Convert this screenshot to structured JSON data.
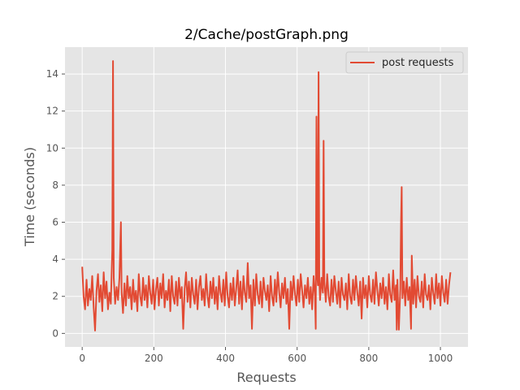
{
  "chart_data": {
    "type": "line",
    "title": "2/Cache/postGraph.png",
    "xlabel": "Requests",
    "ylabel": "Time (seconds)",
    "xlim": [
      -48,
      1077
    ],
    "ylim": [
      -0.73,
      15.45
    ],
    "xticks": [
      0,
      200,
      400,
      600,
      800,
      1000
    ],
    "yticks": [
      0,
      2,
      4,
      6,
      8,
      10,
      12,
      14
    ],
    "grid": true,
    "legend_position": "top-right",
    "series": [
      {
        "name": "post requests",
        "color": "#E24A33",
        "points": [
          [
            0,
            3.6
          ],
          [
            4,
            2.0
          ],
          [
            8,
            1.3
          ],
          [
            12,
            2.9
          ],
          [
            16,
            1.5
          ],
          [
            20,
            2.4
          ],
          [
            24,
            1.8
          ],
          [
            28,
            3.1
          ],
          [
            32,
            1.4
          ],
          [
            36,
            0.15
          ],
          [
            40,
            2.3
          ],
          [
            44,
            3.2
          ],
          [
            48,
            1.7
          ],
          [
            52,
            2.6
          ],
          [
            56,
            1.2
          ],
          [
            60,
            3.3
          ],
          [
            64,
            1.9
          ],
          [
            68,
            2.8
          ],
          [
            72,
            1.3
          ],
          [
            76,
            2.2
          ],
          [
            80,
            1.6
          ],
          [
            84,
            4.5
          ],
          [
            86,
            14.7
          ],
          [
            88,
            3.0
          ],
          [
            92,
            1.6
          ],
          [
            96,
            2.5
          ],
          [
            100,
            1.8
          ],
          [
            104,
            3.0
          ],
          [
            108,
            6.0
          ],
          [
            110,
            2.2
          ],
          [
            114,
            1.1
          ],
          [
            118,
            2.7
          ],
          [
            122,
            1.5
          ],
          [
            126,
            3.1
          ],
          [
            130,
            1.9
          ],
          [
            134,
            2.5
          ],
          [
            138,
            1.3
          ],
          [
            142,
            2.9
          ],
          [
            146,
            1.7
          ],
          [
            150,
            2.3
          ],
          [
            154,
            1.2
          ],
          [
            158,
            3.2
          ],
          [
            162,
            2.0
          ],
          [
            166,
            1.5
          ],
          [
            170,
            3.0
          ],
          [
            174,
            1.8
          ],
          [
            178,
            2.6
          ],
          [
            182,
            1.4
          ],
          [
            186,
            3.1
          ],
          [
            190,
            2.2
          ],
          [
            194,
            1.6
          ],
          [
            198,
            2.9
          ],
          [
            202,
            1.3
          ],
          [
            206,
            2.4
          ],
          [
            210,
            3.0
          ],
          [
            214,
            1.5
          ],
          [
            218,
            2.7
          ],
          [
            222,
            1.9
          ],
          [
            226,
            3.2
          ],
          [
            230,
            1.4
          ],
          [
            234,
            2.3
          ],
          [
            238,
            1.8
          ],
          [
            242,
            2.9
          ],
          [
            246,
            1.2
          ],
          [
            250,
            3.1
          ],
          [
            254,
            2.0
          ],
          [
            258,
            1.6
          ],
          [
            262,
            2.8
          ],
          [
            266,
            1.5
          ],
          [
            270,
            3.0
          ],
          [
            274,
            1.9
          ],
          [
            278,
            2.5
          ],
          [
            282,
            0.25
          ],
          [
            286,
            2.4
          ],
          [
            290,
            3.3
          ],
          [
            294,
            1.7
          ],
          [
            298,
            2.8
          ],
          [
            302,
            1.4
          ],
          [
            306,
            3.0
          ],
          [
            310,
            2.1
          ],
          [
            314,
            1.6
          ],
          [
            318,
            2.9
          ],
          [
            322,
            1.3
          ],
          [
            326,
            2.5
          ],
          [
            330,
            3.1
          ],
          [
            334,
            1.8
          ],
          [
            338,
            2.4
          ],
          [
            342,
            1.5
          ],
          [
            346,
            3.2
          ],
          [
            350,
            2.0
          ],
          [
            354,
            1.4
          ],
          [
            358,
            2.8
          ],
          [
            362,
            1.9
          ],
          [
            366,
            3.0
          ],
          [
            370,
            1.6
          ],
          [
            374,
            2.5
          ],
          [
            378,
            1.3
          ],
          [
            382,
            3.1
          ],
          [
            386,
            2.2
          ],
          [
            390,
            1.7
          ],
          [
            394,
            2.9
          ],
          [
            398,
            1.5
          ],
          [
            402,
            3.3
          ],
          [
            406,
            2.0
          ],
          [
            410,
            1.4
          ],
          [
            414,
            2.7
          ],
          [
            418,
            1.8
          ],
          [
            422,
            3.0
          ],
          [
            426,
            1.5
          ],
          [
            430,
            2.4
          ],
          [
            434,
            3.4
          ],
          [
            438,
            1.6
          ],
          [
            442,
            2.8
          ],
          [
            446,
            1.3
          ],
          [
            450,
            3.1
          ],
          [
            454,
            2.2
          ],
          [
            458,
            1.7
          ],
          [
            462,
            3.8
          ],
          [
            466,
            1.9
          ],
          [
            470,
            2.6
          ],
          [
            474,
            0.25
          ],
          [
            478,
            2.9
          ],
          [
            482,
            1.5
          ],
          [
            486,
            3.2
          ],
          [
            490,
            2.1
          ],
          [
            494,
            1.6
          ],
          [
            498,
            2.8
          ],
          [
            502,
            1.4
          ],
          [
            506,
            3.0
          ],
          [
            510,
            2.3
          ],
          [
            514,
            1.8
          ],
          [
            518,
            2.6
          ],
          [
            522,
            1.2
          ],
          [
            526,
            3.1
          ],
          [
            530,
            2.0
          ],
          [
            534,
            1.5
          ],
          [
            538,
            2.9
          ],
          [
            542,
            1.7
          ],
          [
            546,
            3.3
          ],
          [
            550,
            2.2
          ],
          [
            554,
            1.4
          ],
          [
            558,
            2.7
          ],
          [
            562,
            1.9
          ],
          [
            566,
            3.0
          ],
          [
            570,
            1.6
          ],
          [
            574,
            2.4
          ],
          [
            578,
            0.25
          ],
          [
            582,
            2.8
          ],
          [
            586,
            1.8
          ],
          [
            590,
            3.1
          ],
          [
            594,
            2.1
          ],
          [
            598,
            1.5
          ],
          [
            602,
            2.9
          ],
          [
            606,
            1.7
          ],
          [
            610,
            3.2
          ],
          [
            614,
            2.3
          ],
          [
            618,
            1.4
          ],
          [
            622,
            2.6
          ],
          [
            626,
            1.9
          ],
          [
            630,
            3.0
          ],
          [
            634,
            1.6
          ],
          [
            638,
            2.5
          ],
          [
            642,
            1.3
          ],
          [
            646,
            3.1
          ],
          [
            650,
            2.0
          ],
          [
            652,
            0.25
          ],
          [
            654,
            11.7
          ],
          [
            656,
            3.2
          ],
          [
            658,
            2.6
          ],
          [
            660,
            14.1
          ],
          [
            662,
            2.9
          ],
          [
            664,
            1.8
          ],
          [
            668,
            3.0
          ],
          [
            672,
            2.2
          ],
          [
            674,
            10.4
          ],
          [
            676,
            2.8
          ],
          [
            680,
            1.7
          ],
          [
            684,
            3.2
          ],
          [
            688,
            2.0
          ],
          [
            692,
            1.5
          ],
          [
            696,
            2.9
          ],
          [
            700,
            1.7
          ],
          [
            704,
            3.1
          ],
          [
            708,
            2.3
          ],
          [
            712,
            1.6
          ],
          [
            716,
            2.8
          ],
          [
            720,
            1.4
          ],
          [
            724,
            3.0
          ],
          [
            728,
            2.1
          ],
          [
            732,
            1.8
          ],
          [
            736,
            2.7
          ],
          [
            740,
            1.3
          ],
          [
            744,
            3.2
          ],
          [
            748,
            2.0
          ],
          [
            752,
            1.6
          ],
          [
            756,
            2.9
          ],
          [
            760,
            1.8
          ],
          [
            764,
            3.1
          ],
          [
            768,
            2.2
          ],
          [
            772,
            1.5
          ],
          [
            776,
            2.8
          ],
          [
            780,
            0.8
          ],
          [
            784,
            3.0
          ],
          [
            788,
            1.9
          ],
          [
            792,
            2.6
          ],
          [
            796,
            1.4
          ],
          [
            800,
            3.1
          ],
          [
            804,
            2.1
          ],
          [
            808,
            1.7
          ],
          [
            812,
            2.9
          ],
          [
            816,
            1.6
          ],
          [
            820,
            3.3
          ],
          [
            824,
            2.3
          ],
          [
            828,
            1.5
          ],
          [
            832,
            2.7
          ],
          [
            836,
            1.9
          ],
          [
            840,
            3.0
          ],
          [
            844,
            1.6
          ],
          [
            848,
            2.5
          ],
          [
            852,
            1.3
          ],
          [
            856,
            3.2
          ],
          [
            860,
            2.1
          ],
          [
            864,
            1.7
          ],
          [
            868,
            3.4
          ],
          [
            872,
            1.8
          ],
          [
            876,
            2.6
          ],
          [
            878,
            0.2
          ],
          [
            880,
            2.9
          ],
          [
            884,
            0.2
          ],
          [
            888,
            2.4
          ],
          [
            890,
            6.0
          ],
          [
            892,
            7.9
          ],
          [
            894,
            1.9
          ],
          [
            898,
            2.8
          ],
          [
            902,
            1.5
          ],
          [
            906,
            3.0
          ],
          [
            910,
            1.8
          ],
          [
            914,
            2.5
          ],
          [
            918,
            0.25
          ],
          [
            920,
            4.2
          ],
          [
            924,
            1.6
          ],
          [
            928,
            2.9
          ],
          [
            932,
            1.4
          ],
          [
            936,
            3.1
          ],
          [
            940,
            2.0
          ],
          [
            944,
            1.7
          ],
          [
            948,
            2.8
          ],
          [
            952,
            1.4
          ],
          [
            956,
            3.2
          ],
          [
            960,
            2.1
          ],
          [
            964,
            1.8
          ],
          [
            968,
            2.6
          ],
          [
            972,
            1.3
          ],
          [
            976,
            3.0
          ],
          [
            980,
            2.2
          ],
          [
            984,
            1.6
          ],
          [
            988,
            3.2
          ],
          [
            992,
            1.9
          ],
          [
            996,
            2.7
          ],
          [
            1000,
            1.5
          ],
          [
            1004,
            3.1
          ],
          [
            1008,
            2.2
          ],
          [
            1012,
            1.7
          ],
          [
            1016,
            2.9
          ],
          [
            1020,
            1.6
          ],
          [
            1024,
            2.6
          ],
          [
            1028,
            3.3
          ]
        ]
      }
    ]
  }
}
